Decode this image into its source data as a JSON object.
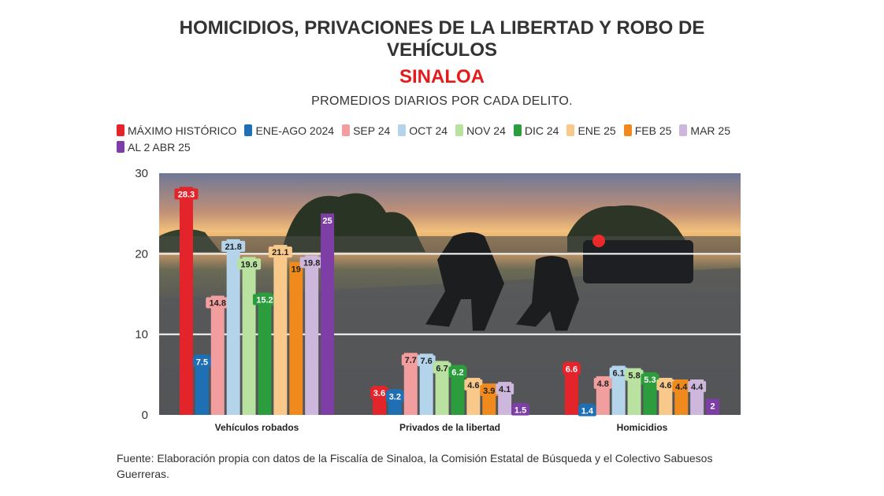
{
  "header": {
    "title_line1": "HOMICIDIOS, PRIVACIONES DE LA LIBERTAD Y ROBO DE",
    "title_line2": "VEHÍCULOS",
    "title_region": "SINALOA",
    "subtitle": "PROMEDIOS DIARIOS POR CADA DELITO."
  },
  "footer": {
    "source": "Fuente: Elaboración propia con datos de la Fiscalía de Sinaloa, la Comisión Estatal de Búsqueda y el Colectivo Sabuesos Guerreras."
  },
  "chart_data": {
    "type": "bar",
    "title": "HOMICIDIOS, PRIVACIONES DE LA LIBERTAD Y ROBO DE VEHÍCULOS",
    "subtitle": "PROMEDIOS DIARIOS POR CADA DELITO.",
    "categories": [
      "Vehículos robados",
      "Privados de la libertad",
      "Homicidios"
    ],
    "ylim": [
      0,
      30
    ],
    "yticks": [
      0,
      10,
      20,
      30
    ],
    "grid": true,
    "legend_position": "top",
    "background": "photo",
    "series": [
      {
        "name": "MÁXIMO HISTÓRICO",
        "color": "#e3242b",
        "values": [
          28.3,
          3.6,
          6.6
        ]
      },
      {
        "name": "ENE-AGO 2024",
        "color": "#1f6fb4",
        "values": [
          7.5,
          3.2,
          1.4
        ]
      },
      {
        "name": "SEP 24",
        "color": "#f29e9e",
        "values": [
          14.8,
          7.7,
          4.8
        ]
      },
      {
        "name": "OCT 24",
        "color": "#b3d4ea",
        "values": [
          21.8,
          7.6,
          6.1
        ]
      },
      {
        "name": "NOV 24",
        "color": "#b9e2a0",
        "values": [
          19.6,
          6.7,
          5.8
        ]
      },
      {
        "name": "DIC 24",
        "color": "#2c9d3c",
        "values": [
          15.2,
          6.2,
          5.3
        ]
      },
      {
        "name": "ENE 25",
        "color": "#f8c98a",
        "values": [
          21.1,
          4.6,
          4.6
        ]
      },
      {
        "name": "FEB 25",
        "color": "#f08a1d",
        "values": [
          19,
          3.9,
          4.4
        ]
      },
      {
        "name": "MAR 25",
        "color": "#cdb7dc",
        "values": [
          19.8,
          4.1,
          4.4
        ]
      },
      {
        "name": "AL 2 ABR 25",
        "color": "#7d3fa6",
        "values": [
          25,
          1.5,
          2
        ]
      }
    ]
  }
}
